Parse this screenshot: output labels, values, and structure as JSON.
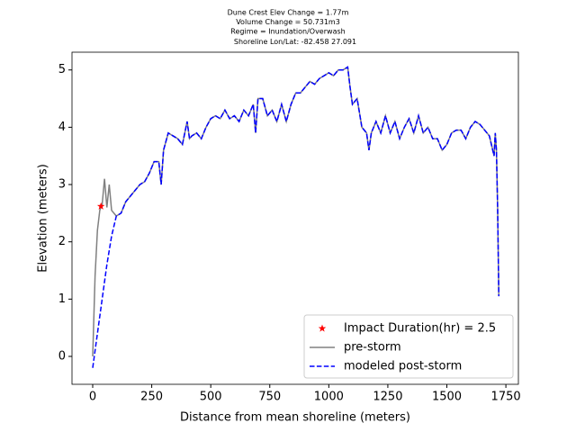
{
  "chart_data": {
    "type": "line",
    "title": [
      "Dune Crest Elev Change = 1.77m",
      "Volume Change = 50.731m3",
      "Regime = Inundation/Overwash",
      "Shoreline Lon/Lat: -82.458 27.091"
    ],
    "x_label": "Distance from mean shoreline (meters)",
    "y_label": "Elevation (meters)",
    "xlim": [
      -87.7,
      1803
    ],
    "ylim": [
      -0.487,
      5.31
    ],
    "xticks": [
      0,
      250,
      500,
      750,
      1000,
      1250,
      1500,
      1750
    ],
    "yticks": [
      0,
      1,
      2,
      3,
      4,
      5
    ],
    "legend": "lower right",
    "x": [
      0,
      10,
      20,
      30,
      40,
      50,
      60,
      70,
      80,
      100,
      120,
      140,
      160,
      180,
      200,
      220,
      240,
      260,
      280,
      290,
      300,
      320,
      340,
      360,
      380,
      400,
      410,
      420,
      440,
      460,
      480,
      500,
      520,
      540,
      560,
      580,
      600,
      620,
      640,
      660,
      680,
      690,
      700,
      720,
      740,
      760,
      780,
      800,
      820,
      840,
      860,
      880,
      900,
      920,
      940,
      960,
      980,
      1000,
      1020,
      1040,
      1060,
      1080,
      1090,
      1100,
      1120,
      1140,
      1160,
      1170,
      1180,
      1200,
      1220,
      1240,
      1260,
      1280,
      1300,
      1320,
      1340,
      1360,
      1380,
      1400,
      1420,
      1440,
      1460,
      1480,
      1500,
      1520,
      1540,
      1560,
      1580,
      1600,
      1620,
      1640,
      1660,
      1680,
      1700,
      1705,
      1710,
      1715,
      1720
    ],
    "series": [
      {
        "name": "Impact Duration(hr) = 2.5",
        "color": "red",
        "marker": "star",
        "x": [
          35
        ],
        "values": [
          2.62
        ]
      },
      {
        "name": "pre-storm",
        "color": "gray",
        "dash": "solid",
        "values": [
          0.0,
          1.4,
          2.2,
          2.55,
          2.65,
          3.1,
          2.6,
          3.0,
          2.55,
          2.45,
          2.5,
          2.7,
          2.8,
          2.9,
          3.0,
          3.05,
          3.2,
          3.4,
          3.4,
          3.0,
          3.6,
          3.9,
          3.85,
          3.8,
          3.7,
          4.1,
          3.8,
          3.85,
          3.9,
          3.8,
          4.0,
          4.15,
          4.2,
          4.15,
          4.3,
          4.15,
          4.2,
          4.1,
          4.3,
          4.2,
          4.4,
          3.9,
          4.5,
          4.5,
          4.2,
          4.3,
          4.1,
          4.4,
          4.1,
          4.4,
          4.6,
          4.6,
          4.7,
          4.8,
          4.75,
          4.85,
          4.9,
          4.95,
          4.9,
          5.0,
          5.0,
          5.05,
          4.7,
          4.4,
          4.5,
          4.0,
          3.9,
          3.6,
          3.9,
          4.1,
          3.9,
          4.2,
          3.9,
          4.1,
          3.8,
          4.0,
          4.15,
          3.9,
          4.2,
          3.9,
          4.0,
          3.8,
          3.8,
          3.6,
          3.7,
          3.9,
          3.95,
          3.95,
          3.8,
          4.0,
          4.1,
          4.05,
          3.95,
          3.85,
          3.5,
          3.9,
          3.6,
          2.6,
          1.05
        ]
      },
      {
        "name": "modeled post-storm",
        "color": "blue",
        "dash": "dashed",
        "values": [
          -0.2,
          0.1,
          0.4,
          0.7,
          1.0,
          1.3,
          1.6,
          1.85,
          2.1,
          2.45,
          2.5,
          2.7,
          2.8,
          2.9,
          3.0,
          3.05,
          3.2,
          3.4,
          3.4,
          3.0,
          3.6,
          3.9,
          3.85,
          3.8,
          3.7,
          4.1,
          3.8,
          3.85,
          3.9,
          3.8,
          4.0,
          4.15,
          4.2,
          4.15,
          4.3,
          4.15,
          4.2,
          4.1,
          4.3,
          4.2,
          4.4,
          3.9,
          4.5,
          4.5,
          4.2,
          4.3,
          4.1,
          4.4,
          4.1,
          4.4,
          4.6,
          4.6,
          4.7,
          4.8,
          4.75,
          4.85,
          4.9,
          4.95,
          4.9,
          5.0,
          5.0,
          5.05,
          4.7,
          4.4,
          4.5,
          4.0,
          3.9,
          3.6,
          3.9,
          4.1,
          3.9,
          4.2,
          3.9,
          4.1,
          3.8,
          4.0,
          4.15,
          3.9,
          4.2,
          3.9,
          4.0,
          3.8,
          3.8,
          3.6,
          3.7,
          3.9,
          3.95,
          3.95,
          3.8,
          4.0,
          4.1,
          4.05,
          3.95,
          3.85,
          3.5,
          3.9,
          3.6,
          2.6,
          1.05
        ]
      }
    ]
  }
}
